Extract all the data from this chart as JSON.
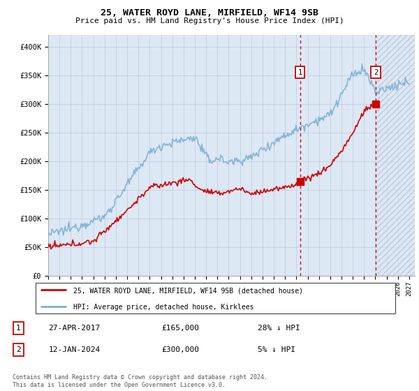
{
  "title": "25, WATER ROYD LANE, MIRFIELD, WF14 9SB",
  "subtitle": "Price paid vs. HM Land Registry's House Price Index (HPI)",
  "ylim": [
    0,
    420000
  ],
  "yticks": [
    0,
    50000,
    100000,
    150000,
    200000,
    250000,
    300000,
    350000,
    400000
  ],
  "ytick_labels": [
    "£0",
    "£50K",
    "£100K",
    "£150K",
    "£200K",
    "£250K",
    "£300K",
    "£350K",
    "£400K"
  ],
  "xlim_start": 1995.0,
  "xlim_end": 2027.5,
  "marker1_date": 2017.32,
  "marker1_price": 165000,
  "marker1_label": "1",
  "marker2_date": 2024.04,
  "marker2_price": 300000,
  "marker2_label": "2",
  "legend_house_label": "25, WATER ROYD LANE, MIRFIELD, WF14 9SB (detached house)",
  "legend_hpi_label": "HPI: Average price, detached house, Kirklees",
  "note1_label": "1",
  "note1_date": "27-APR-2017",
  "note1_price": "£165,000",
  "note1_hpi": "28% ↓ HPI",
  "note2_label": "2",
  "note2_date": "12-JAN-2024",
  "note2_price": "£300,000",
  "note2_hpi": "5% ↓ HPI",
  "footer": "Contains HM Land Registry data © Crown copyright and database right 2024.\nThis data is licensed under the Open Government Licence v3.0.",
  "house_color": "#cc0000",
  "hpi_color": "#7ab0d4",
  "bg_color": "#dde8f5",
  "marker_box_color": "#cc0000",
  "grid_color": "#c0c8d8"
}
